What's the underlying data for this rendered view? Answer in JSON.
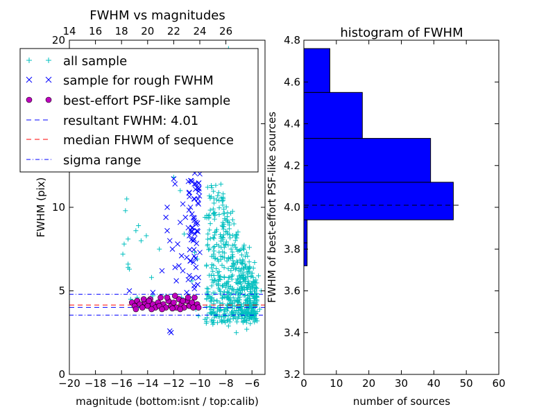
{
  "chart_data": [
    {
      "type": "scatter",
      "title": "FWHM vs magnitudes",
      "xlabel": "magnitude (bottom:isnt / top:calib)",
      "ylabel": "FWHM (pix)",
      "xlim": [
        -20,
        -5
      ],
      "ylim": [
        0,
        20
      ],
      "x_ticks": [
        "−20",
        "−18",
        "−16",
        "−14",
        "−12",
        "−10",
        "−8",
        "−6"
      ],
      "x_tick_values": [
        -20,
        -18,
        -16,
        -14,
        -12,
        -10,
        -8,
        -6
      ],
      "y_ticks": [
        "0",
        "5",
        "10",
        "15",
        "20"
      ],
      "y_tick_values": [
        0,
        5,
        10,
        15,
        20
      ],
      "top_ticks": [
        "14",
        "16",
        "18",
        "20",
        "22",
        "24",
        "26"
      ],
      "top_tick_values": [
        14,
        16,
        18,
        20,
        22,
        24,
        26
      ],
      "top_axis_offset": 34,
      "lines": [
        {
          "name": "resultant FWHM: 4.01",
          "y": 4.01,
          "color": "#0000ff",
          "style": "dashed"
        },
        {
          "name": "median FHWM of sequence",
          "y": 4.15,
          "color": "#ff0000",
          "style": "dashed"
        },
        {
          "name": "sigma range",
          "y": 3.55,
          "color": "#0000ff",
          "style": "dashdot"
        },
        {
          "name": "sigma range",
          "y": 4.8,
          "color": "#0000ff",
          "style": "dashdot"
        }
      ],
      "series": [
        {
          "name": "all sample",
          "marker": "plus",
          "color": "#00bfbf",
          "points": [
            [
              -15.6,
              10.5
            ],
            [
              -15.7,
              9.8
            ],
            [
              -15.5,
              8.1
            ],
            [
              -15.8,
              7.8
            ],
            [
              -15.9,
              7.2
            ],
            [
              -15.5,
              6.4
            ],
            [
              -15.5,
              6.6
            ],
            [
              -15.4,
              6.3
            ],
            [
              -15.3,
              4.5
            ],
            [
              -15.2,
              4.2
            ],
            [
              -14.9,
              8.6
            ],
            [
              -14.7,
              8.9
            ],
            [
              -14.5,
              8.0
            ],
            [
              -14.1,
              8.3
            ],
            [
              -13.7,
              5.8
            ],
            [
              -13.1,
              7.5
            ],
            [
              -12.0,
              11.8
            ],
            [
              -11.5,
              11.0
            ],
            [
              -11.2,
              8.4
            ],
            [
              -10.2,
              16.5
            ],
            [
              -10.4,
              7.3
            ],
            [
              -10.6,
              5.6
            ],
            [
              -10.2,
              6.9
            ],
            [
              -9.6,
              9.4
            ],
            [
              -9.4,
              11.2
            ],
            [
              -9.1,
              13.5
            ],
            [
              -8.6,
              15.6
            ],
            [
              -7.8,
              19.5
            ],
            [
              -7.6,
              18.8
            ],
            [
              -7.4,
              15.9
            ],
            [
              -8.2,
              12.3
            ],
            [
              -8.7,
              12.8
            ],
            [
              -9.3,
              14.9
            ],
            [
              -7.2,
              17.0
            ],
            [
              -6.8,
              12.4
            ],
            [
              -6.2,
              7.6
            ],
            [
              -5.8,
              6.7
            ],
            [
              -5.5,
              5.9
            ],
            [
              -5.3,
              5.0
            ],
            [
              -5.6,
              3.2
            ],
            [
              -6.4,
              2.7
            ],
            [
              -7.2,
              2.5
            ],
            [
              -7.8,
              2.9
            ],
            [
              -8.2,
              3.2
            ],
            [
              -9.0,
              3.0
            ],
            [
              -9.6,
              3.3
            ],
            [
              -10.1,
              3.5
            ],
            [
              -10.3,
              3.9
            ],
            [
              -10.5,
              4.6
            ],
            [
              -11.4,
              4.6
            ],
            [
              -12.6,
              4.7
            ],
            [
              -13.6,
              4.7
            ],
            [
              -14.8,
              4.6
            ],
            [
              -8.5,
              16.7
            ],
            [
              -9.9,
              15.0
            ],
            [
              -7.9,
              17.3
            ],
            [
              -9.0,
              18.2
            ],
            [
              -10.0,
              12.9
            ],
            [
              -8.4,
              14.3
            ],
            [
              -7.0,
              4.3
            ],
            [
              -7.4,
              3.6
            ],
            [
              -6.6,
              4.7
            ],
            [
              -6.9,
              3.9
            ],
            [
              -7.7,
              4.5
            ],
            [
              -8.6,
              4.0
            ],
            [
              -9.2,
              4.4
            ],
            [
              -6.1,
              3.7
            ],
            [
              -5.9,
              4.2
            ],
            [
              -5.4,
              3.9
            ],
            [
              -5.7,
              4.8
            ],
            [
              -6.5,
              5.7
            ],
            [
              -7.0,
              6.2
            ]
          ],
          "cloud": {
            "x_from": -10.2,
            "x_to": -5.6,
            "y_from": 2.8,
            "y_to": 14.0,
            "count": 600
          }
        },
        {
          "name": "sample for rough FWHM",
          "marker": "x",
          "color": "#0000ff",
          "points": [
            [
              -15.4,
              5.0
            ],
            [
              -12.0,
              11.7
            ],
            [
              -11.9,
              11.4
            ],
            [
              -12.3,
              2.6
            ],
            [
              -12.2,
              2.5
            ],
            [
              -12.5,
              8.6
            ],
            [
              -12.3,
              8.0
            ],
            [
              -12.1,
              7.5
            ],
            [
              -11.7,
              7.8
            ],
            [
              -11.6,
              6.5
            ],
            [
              -11.3,
              6.2
            ],
            [
              -11.9,
              6.4
            ],
            [
              -12.5,
              10.0
            ],
            [
              -12.6,
              9.4
            ],
            [
              -11.5,
              9.1
            ],
            [
              -11.4,
              7.1
            ],
            [
              -11.0,
              7.0
            ],
            [
              -10.7,
              6.8
            ],
            [
              -11.1,
              9.4
            ],
            [
              -10.8,
              8.3
            ],
            [
              -10.5,
              8.0
            ],
            [
              -10.6,
              9.6
            ],
            [
              -10.3,
              9.1
            ],
            [
              -10.2,
              8.6
            ],
            [
              -10.9,
              12.4
            ],
            [
              -10.7,
              11.6
            ],
            [
              -10.8,
              10.9
            ],
            [
              -11.3,
              10.2
            ],
            [
              -10.4,
              10.5
            ],
            [
              -10.1,
              10.2
            ],
            [
              -10.9,
              14.3
            ],
            [
              -10.5,
              13.6
            ],
            [
              -10.2,
              14.9
            ],
            [
              -10.6,
              15.9
            ],
            [
              -10.0,
              12.0
            ],
            [
              -10.3,
              6.4
            ],
            [
              -10.1,
              5.8
            ],
            [
              -11.8,
              5.6
            ],
            [
              -12.9,
              6.2
            ],
            [
              -13.6,
              4.9
            ],
            [
              -11.0,
              4.9
            ],
            [
              -10.0,
              7.3
            ]
          ]
        },
        {
          "name": "best-effort PSF-like sample",
          "marker": "circle",
          "color": "#bf00bf",
          "points": [
            [
              -15.2,
              4.3
            ],
            [
              -15.0,
              4.1
            ],
            [
              -14.8,
              4.4
            ],
            [
              -14.6,
              4.2
            ],
            [
              -14.4,
              4.0
            ],
            [
              -14.2,
              4.3
            ],
            [
              -14.0,
              4.1
            ],
            [
              -13.8,
              4.5
            ],
            [
              -13.6,
              4.2
            ],
            [
              -13.4,
              4.0
            ],
            [
              -13.2,
              4.3
            ],
            [
              -13.0,
              4.6
            ],
            [
              -12.8,
              4.2
            ],
            [
              -12.6,
              4.0
            ],
            [
              -12.4,
              4.4
            ],
            [
              -12.2,
              4.1
            ],
            [
              -12.0,
              4.3
            ],
            [
              -11.8,
              4.0
            ],
            [
              -11.6,
              4.5
            ],
            [
              -11.4,
              4.2
            ],
            [
              -11.2,
              4.0
            ],
            [
              -11.0,
              4.4
            ],
            [
              -10.8,
              4.1
            ],
            [
              -10.6,
              4.3
            ],
            [
              -10.4,
              4.6
            ],
            [
              -10.2,
              4.2
            ],
            [
              -10.1,
              4.0
            ],
            [
              -14.9,
              3.9
            ],
            [
              -14.3,
              4.5
            ],
            [
              -13.7,
              3.9
            ],
            [
              -13.1,
              4.1
            ],
            [
              -12.5,
              4.6
            ],
            [
              -11.9,
              4.7
            ],
            [
              -11.5,
              3.9
            ],
            [
              -10.9,
              4.6
            ],
            [
              -10.5,
              4.0
            ],
            [
              -12.9,
              3.9
            ],
            [
              -13.9,
              4.4
            ],
            [
              -12.1,
              3.95
            ],
            [
              -11.3,
              4.4
            ]
          ]
        }
      ],
      "legend": {
        "placement": "upper-left",
        "entries": [
          {
            "label": "all sample",
            "marker": "plus",
            "color": "#00bfbf"
          },
          {
            "label": "sample for rough FWHM",
            "marker": "x",
            "color": "#0000ff"
          },
          {
            "label": "best-effort PSF-like sample",
            "marker": "circle",
            "color": "#bf00bf"
          },
          {
            "label": "resultant FWHM: 4.01",
            "marker": "dashed",
            "color": "#0000ff"
          },
          {
            "label": "median FHWM of sequence",
            "marker": "dashed",
            "color": "#ff0000"
          },
          {
            "label": "sigma range",
            "marker": "dashdot",
            "color": "#0000ff"
          }
        ]
      }
    },
    {
      "type": "bar",
      "orientation": "horizontal",
      "title": "histogram of FWHM",
      "xlabel": "number of sources",
      "ylabel": "FWHM of best-effort PSF-like sources",
      "xlim": [
        0,
        60
      ],
      "ylim": [
        3.2,
        4.8
      ],
      "x_ticks": [
        "0",
        "10",
        "20",
        "30",
        "40",
        "50",
        "60"
      ],
      "x_tick_values": [
        0,
        10,
        20,
        30,
        40,
        50,
        60
      ],
      "y_ticks": [
        "3.2",
        "3.4",
        "3.6",
        "3.8",
        "4.0",
        "4.2",
        "4.4",
        "4.6",
        "4.8"
      ],
      "y_tick_values": [
        3.2,
        3.4,
        3.6,
        3.8,
        4.0,
        4.2,
        4.4,
        4.6,
        4.8
      ],
      "bar_color": "#0000ff",
      "bins": [
        {
          "from": 3.5,
          "to": 3.61,
          "value": 0
        },
        {
          "from": 3.61,
          "to": 3.72,
          "value": 0
        },
        {
          "from": 3.72,
          "to": 3.83,
          "value": 1
        },
        {
          "from": 3.83,
          "to": 3.94,
          "value": 1
        },
        {
          "from": 3.94,
          "to": 4.12,
          "value": 46
        },
        {
          "from": 4.12,
          "to": 4.33,
          "value": 39
        },
        {
          "from": 4.33,
          "to": 4.55,
          "value": 18
        },
        {
          "from": 4.55,
          "to": 4.76,
          "value": 8
        }
      ],
      "reference_line": {
        "y": 4.01,
        "color": "#000000",
        "style": "dashed"
      }
    }
  ]
}
